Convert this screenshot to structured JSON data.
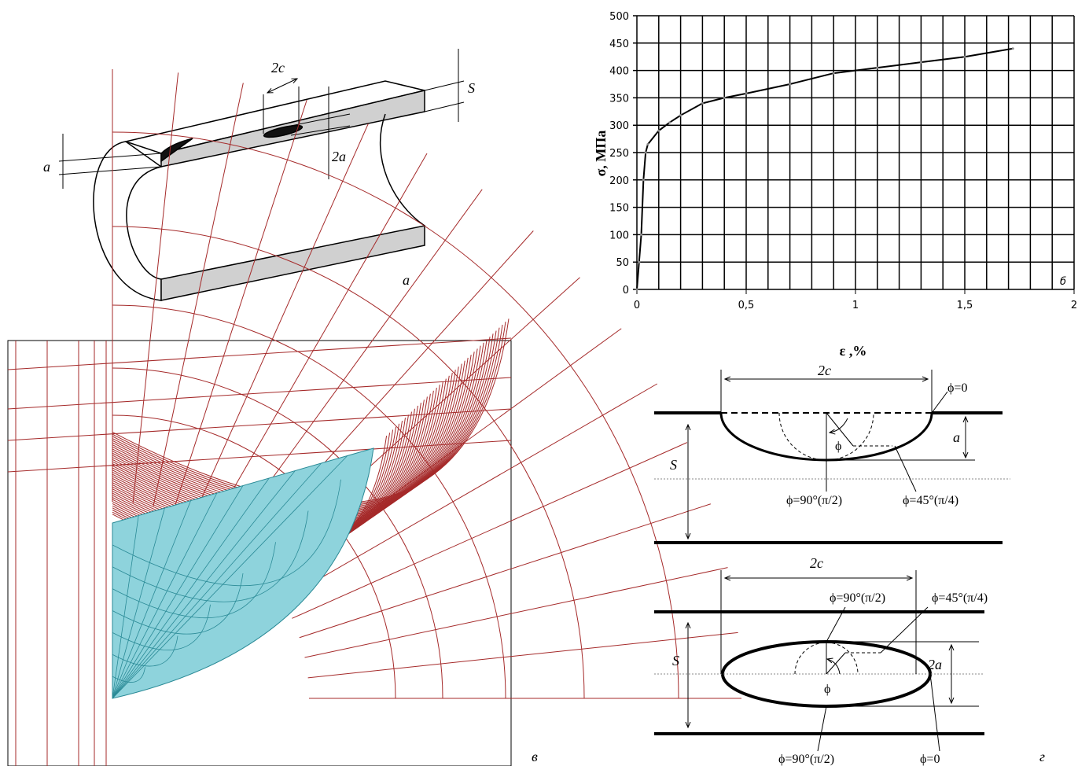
{
  "panel_a": {
    "label_2c": "2c",
    "label_S": "S",
    "label_a": "a",
    "label_2a": "2a",
    "panel_label": "а"
  },
  "chart_data": {
    "type": "line",
    "y_label": "σ, МПа",
    "x_label": "ε ,%",
    "panel_label": "б",
    "x": [
      0,
      0.01,
      0.02,
      0.03,
      0.04,
      0.05,
      0.1,
      0.15,
      0.2,
      0.3,
      0.4,
      0.5,
      0.7,
      0.9,
      1.1,
      1.3,
      1.5,
      1.72
    ],
    "series": [
      {
        "color": "#000000",
        "values": [
          0,
          50,
          100,
          200,
          250,
          265,
          290,
          305,
          318,
          340,
          350,
          358,
          375,
          395,
          405,
          415,
          425,
          440
        ]
      }
    ],
    "xlim": [
      0,
      2
    ],
    "ylim": [
      0,
      500
    ],
    "xticks": [
      0,
      {
        "value": 0.5,
        "label": "0,5"
      },
      1,
      {
        "value": 1.5,
        "label": "1,5"
      },
      2
    ],
    "yticks": [
      0,
      50,
      100,
      150,
      200,
      250,
      300,
      350,
      400,
      450,
      500
    ],
    "xgrid": [
      0,
      0.1,
      0.2,
      0.3,
      0.4,
      0.5,
      0.6,
      0.7,
      0.8,
      0.9,
      1,
      1.1,
      1.2,
      1.3,
      1.4,
      1.5,
      1.6,
      1.7,
      1.8,
      1.9,
      2
    ],
    "grid": true
  },
  "panel_c": {
    "panel_label": "в"
  },
  "panel_d": {
    "top": {
      "label_2c": "2c",
      "phi0": "ϕ=0",
      "label_a": "a",
      "label_S": "S",
      "phi": "ϕ",
      "phi90": "ϕ=90°(π/2)",
      "phi45": "ϕ=45°(π/4)"
    },
    "bottom": {
      "label_2c": "2c",
      "phi90_top": "ϕ=90°(π/2)",
      "phi45": "ϕ=45°(π/4)",
      "label_S": "S",
      "label_2a": "2a",
      "phi": "ϕ",
      "phi90_bottom": "ϕ=90°(π/2)",
      "phi0": "ϕ=0"
    },
    "panel_label": "г"
  }
}
